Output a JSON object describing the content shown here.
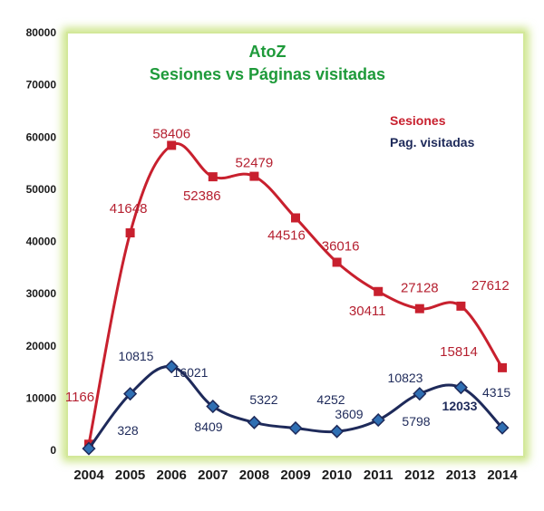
{
  "chart_data": {
    "type": "line",
    "title": "AtoZ",
    "subtitle": "Sesiones  vs Páginas visitadas",
    "categories": [
      "2004",
      "2005",
      "2006",
      "2007",
      "2008",
      "2009",
      "2010",
      "2011",
      "2012",
      "2013",
      "2014"
    ],
    "ylim": [
      0,
      80000
    ],
    "yticks": [
      "0",
      "10000",
      "20000",
      "30000",
      "40000",
      "50000",
      "60000",
      "70000",
      "80000"
    ],
    "legend_position": "top-right",
    "grid": false,
    "series": [
      {
        "name": "Sesiones",
        "color": "#c8202e",
        "marker": "square",
        "values": [
          1166,
          41648,
          58406,
          52386,
          52479,
          44516,
          36016,
          30411,
          27128,
          27612,
          15814
        ],
        "labels": [
          "1166",
          "41648",
          "58406",
          "52386",
          "52479",
          "44516",
          "36016",
          "30411",
          "27128",
          "27612",
          "15814"
        ]
      },
      {
        "name": "Pag. visitadas",
        "color": "#1e2a5a",
        "marker": "diamond",
        "values": [
          328,
          10815,
          16021,
          8409,
          5322,
          4252,
          3609,
          5798,
          10823,
          12033,
          4315
        ],
        "labels": [
          "328",
          "10815",
          "16021",
          "8409",
          "5322",
          "4252",
          "3609",
          "5798",
          "10823",
          "12033",
          "4315"
        ]
      }
    ],
    "colors": {
      "frame_glow": "#c6e27a",
      "title": "#1e9a3a"
    }
  }
}
